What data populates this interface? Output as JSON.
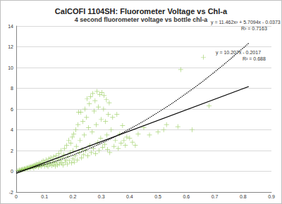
{
  "chart_data": {
    "type": "scatter",
    "title": "CalCOFI 1104SH: Fluorometer Voltage vs Chl-a",
    "subtitle": "4 second fluorometer voltage vs bottle chl-a",
    "xlim": [
      0,
      0.9
    ],
    "xticks": [
      0,
      0.1,
      0.2,
      0.3,
      0.4,
      0.5,
      0.6,
      0.7,
      0.8,
      0.9
    ],
    "ylim": [
      -2,
      14
    ],
    "yticks": [
      -2,
      0,
      2,
      4,
      6,
      8,
      10,
      12,
      14
    ],
    "grid": true,
    "annotations": [
      "y = 11.462x² + 5.7094x - 0.0373",
      "R² = 0.7163",
      "y = 10.207x - 0.2017",
      "R² = 0.688"
    ],
    "series": [
      {
        "type": "scatter",
        "color": "#92c955",
        "marker": "plus",
        "x": [
          0.005,
          0.01,
          0.012,
          0.015,
          0.018,
          0.02,
          0.022,
          0.025,
          0.028,
          0.03,
          0.032,
          0.035,
          0.038,
          0.04,
          0.042,
          0.045,
          0.048,
          0.05,
          0.052,
          0.055,
          0.058,
          0.06,
          0.062,
          0.065,
          0.068,
          0.07,
          0.072,
          0.075,
          0.078,
          0.08,
          0.082,
          0.085,
          0.088,
          0.09,
          0.092,
          0.095,
          0.098,
          0.1,
          0.1,
          0.105,
          0.108,
          0.11,
          0.112,
          0.115,
          0.118,
          0.12,
          0.122,
          0.125,
          0.128,
          0.13,
          0.132,
          0.135,
          0.138,
          0.14,
          0.142,
          0.145,
          0.148,
          0.15,
          0.152,
          0.155,
          0.158,
          0.16,
          0.162,
          0.165,
          0.168,
          0.17,
          0.172,
          0.175,
          0.178,
          0.18,
          0.182,
          0.185,
          0.188,
          0.19,
          0.192,
          0.195,
          0.198,
          0.2,
          0.2,
          0.203,
          0.205,
          0.208,
          0.21,
          0.212,
          0.215,
          0.218,
          0.22,
          0.222,
          0.225,
          0.228,
          0.23,
          0.232,
          0.235,
          0.238,
          0.24,
          0.242,
          0.245,
          0.248,
          0.25,
          0.252,
          0.255,
          0.258,
          0.26,
          0.262,
          0.265,
          0.268,
          0.27,
          0.272,
          0.275,
          0.278,
          0.28,
          0.282,
          0.285,
          0.288,
          0.29,
          0.292,
          0.295,
          0.298,
          0.3,
          0.302,
          0.305,
          0.308,
          0.31,
          0.312,
          0.315,
          0.318,
          0.32,
          0.322,
          0.325,
          0.328,
          0.33,
          0.335,
          0.34,
          0.345,
          0.35,
          0.355,
          0.36,
          0.365,
          0.37,
          0.375,
          0.38,
          0.385,
          0.39,
          0.4,
          0.41,
          0.42,
          0.43,
          0.45,
          0.47,
          0.5,
          0.52,
          0.53,
          0.57,
          0.58,
          0.62,
          0.66,
          0.68
        ],
        "values": [
          0.05,
          0.08,
          0.12,
          0.1,
          0.15,
          0.12,
          0.2,
          0.18,
          0.22,
          0.25,
          0.2,
          0.3,
          0.28,
          0.35,
          0.25,
          0.4,
          0.3,
          0.45,
          0.35,
          0.5,
          0.4,
          0.55,
          0.3,
          0.6,
          0.45,
          0.7,
          0.5,
          0.65,
          0.4,
          0.8,
          0.55,
          0.75,
          0.5,
          0.9,
          0.6,
          1.0,
          0.7,
          0.85,
          0.5,
          1.1,
          0.6,
          0.9,
          0.45,
          1.2,
          0.7,
          0.8,
          1.3,
          0.55,
          1.0,
          0.65,
          1.4,
          0.8,
          0.5,
          1.5,
          0.9,
          0.6,
          1.2,
          1.7,
          0.7,
          1.0,
          2.0,
          0.8,
          1.3,
          0.6,
          1.6,
          2.2,
          0.9,
          1.1,
          2.5,
          0.7,
          1.4,
          3.0,
          1.0,
          1.8,
          2.7,
          0.8,
          3.3,
          1.2,
          2.0,
          3.6,
          0.9,
          1.5,
          4.0,
          2.4,
          1.1,
          4.5,
          5.7,
          1.8,
          3.0,
          5.7,
          1.3,
          2.1,
          4.8,
          1.6,
          3.5,
          6.0,
          2.0,
          5.2,
          7.0,
          1.5,
          4.2,
          6.5,
          2.5,
          7.2,
          1.8,
          3.8,
          7.5,
          2.2,
          5.8,
          6.8,
          1.7,
          4.5,
          7.7,
          2.8,
          6.2,
          2.0,
          7.4,
          3.2,
          5.0,
          7.6,
          2.3,
          6.0,
          7.3,
          2.6,
          4.8,
          6.9,
          3.5,
          2.1,
          5.5,
          6.6,
          1.8,
          4.0,
          5.2,
          2.4,
          3.0,
          5.5,
          2.2,
          3.6,
          2.7,
          4.4,
          3.0,
          2.5,
          3.3,
          3.2,
          2.8,
          2.5,
          3.6,
          4.2,
          3.5,
          3.8,
          4.0,
          4.5,
          4.3,
          9.8,
          4.0,
          11.0,
          6.3
        ]
      },
      {
        "type": "line",
        "color": "#000000",
        "line_style": "dotted",
        "x": [
          0,
          0.1,
          0.2,
          0.3,
          0.4,
          0.5,
          0.6,
          0.7,
          0.8,
          0.82
        ],
        "values": [
          -0.04,
          0.65,
          1.56,
          2.71,
          4.08,
          5.68,
          7.51,
          9.58,
          11.87,
          12.35
        ]
      },
      {
        "type": "line",
        "color": "#000000",
        "line_style": "solid",
        "x": [
          0,
          0.82
        ],
        "values": [
          -0.2,
          8.17
        ]
      }
    ]
  }
}
